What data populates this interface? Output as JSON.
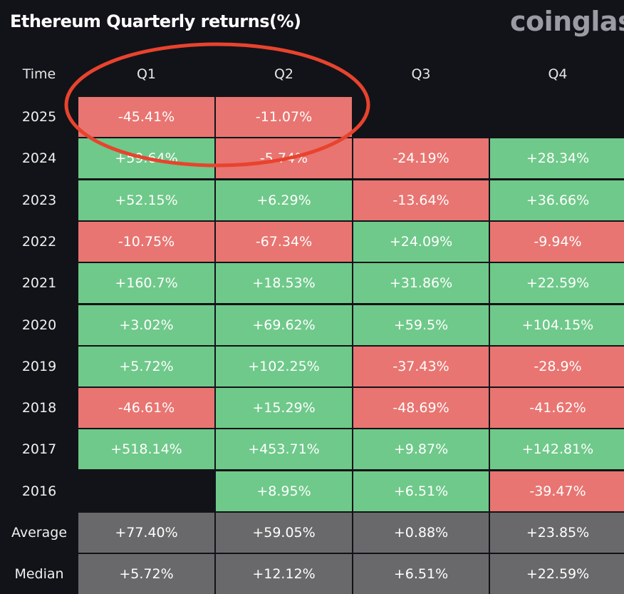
{
  "header": {
    "title": "Ethereum Quarterly returns(%)",
    "brand": "coinglass"
  },
  "table": {
    "columns": [
      "Time",
      "Q1",
      "Q2",
      "Q3",
      "Q4"
    ],
    "rows": [
      {
        "label": "2025",
        "cells": [
          "-45.41%",
          "-11.07%",
          null,
          null
        ]
      },
      {
        "label": "2024",
        "cells": [
          "+59.64%",
          "-5.74%",
          "-24.19%",
          "+28.34%"
        ]
      },
      {
        "label": "2023",
        "cells": [
          "+52.15%",
          "+6.29%",
          "-13.64%",
          "+36.66%"
        ]
      },
      {
        "label": "2022",
        "cells": [
          "-10.75%",
          "-67.34%",
          "+24.09%",
          "-9.94%"
        ]
      },
      {
        "label": "2021",
        "cells": [
          "+160.7%",
          "+18.53%",
          "+31.86%",
          "+22.59%"
        ]
      },
      {
        "label": "2020",
        "cells": [
          "+3.02%",
          "+69.62%",
          "+59.5%",
          "+104.15%"
        ]
      },
      {
        "label": "2019",
        "cells": [
          "+5.72%",
          "+102.25%",
          "-37.43%",
          "-28.9%"
        ]
      },
      {
        "label": "2018",
        "cells": [
          "-46.61%",
          "+15.29%",
          "-48.69%",
          "-41.62%"
        ]
      },
      {
        "label": "2017",
        "cells": [
          "+518.14%",
          "+453.71%",
          "+9.87%",
          "+142.81%"
        ]
      },
      {
        "label": "2016",
        "cells": [
          null,
          "+8.95%",
          "+6.51%",
          "-39.47%"
        ]
      }
    ],
    "summary": [
      {
        "label": "Average",
        "cells": [
          "+77.40%",
          "+59.05%",
          "+0.88%",
          "+23.85%"
        ]
      },
      {
        "label": "Median",
        "cells": [
          "+5.72%",
          "+12.12%",
          "+6.51%",
          "+22.59%"
        ]
      }
    ]
  }
}
